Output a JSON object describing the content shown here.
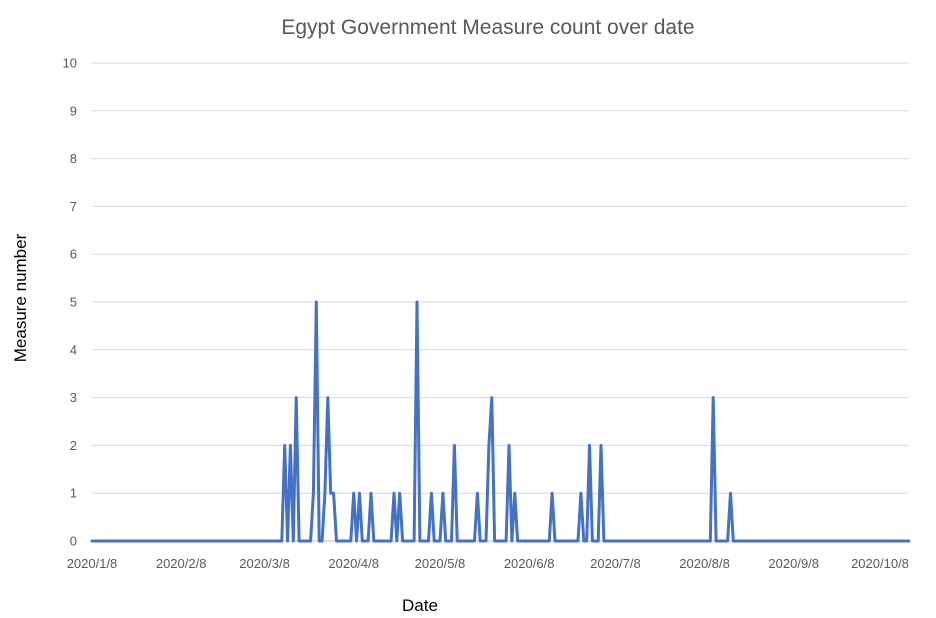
{
  "chart_data": {
    "type": "line",
    "title": "Egypt Government Measure count over date",
    "xlabel": "Date",
    "ylabel": "Measure number",
    "ylim": [
      0,
      10
    ],
    "yticks": [
      0,
      1,
      2,
      3,
      4,
      5,
      6,
      7,
      8,
      9,
      10
    ],
    "xlim": [
      "2020-01-08",
      "2020-10-18"
    ],
    "xticks": [
      {
        "date": "2020-01-08",
        "label": "2020/1/8"
      },
      {
        "date": "2020-02-08",
        "label": "2020/2/8"
      },
      {
        "date": "2020-03-08",
        "label": "2020/3/8"
      },
      {
        "date": "2020-04-08",
        "label": "2020/4/8"
      },
      {
        "date": "2020-05-08",
        "label": "2020/5/8"
      },
      {
        "date": "2020-06-08",
        "label": "2020/6/8"
      },
      {
        "date": "2020-07-08",
        "label": "2020/7/8"
      },
      {
        "date": "2020-08-08",
        "label": "2020/8/8"
      },
      {
        "date": "2020-09-08",
        "label": "2020/9/8"
      },
      {
        "date": "2020-10-08",
        "label": "2020/10/8"
      }
    ],
    "grid": true,
    "line_color": "#4472c4",
    "series": [
      {
        "points": [
          [
            "2020-01-08",
            0
          ],
          [
            "2020-03-14",
            0
          ],
          [
            "2020-03-15",
            2
          ],
          [
            "2020-03-16",
            0
          ],
          [
            "2020-03-17",
            2
          ],
          [
            "2020-03-18",
            0
          ],
          [
            "2020-03-19",
            3
          ],
          [
            "2020-03-20",
            0
          ],
          [
            "2020-03-24",
            0
          ],
          [
            "2020-03-25",
            1
          ],
          [
            "2020-03-26",
            5
          ],
          [
            "2020-03-27",
            0
          ],
          [
            "2020-03-28",
            0
          ],
          [
            "2020-03-29",
            1
          ],
          [
            "2020-03-30",
            3
          ],
          [
            "2020-03-31",
            1
          ],
          [
            "2020-04-01",
            1
          ],
          [
            "2020-04-02",
            0
          ],
          [
            "2020-04-07",
            0
          ],
          [
            "2020-04-08",
            1
          ],
          [
            "2020-04-09",
            0
          ],
          [
            "2020-04-10",
            1
          ],
          [
            "2020-04-11",
            0
          ],
          [
            "2020-04-13",
            0
          ],
          [
            "2020-04-14",
            1
          ],
          [
            "2020-04-15",
            0
          ],
          [
            "2020-04-21",
            0
          ],
          [
            "2020-04-22",
            1
          ],
          [
            "2020-04-23",
            0
          ],
          [
            "2020-04-24",
            1
          ],
          [
            "2020-04-25",
            0
          ],
          [
            "2020-04-29",
            0
          ],
          [
            "2020-04-30",
            5
          ],
          [
            "2020-05-01",
            0
          ],
          [
            "2020-05-04",
            0
          ],
          [
            "2020-05-05",
            1
          ],
          [
            "2020-05-06",
            0
          ],
          [
            "2020-05-08",
            0
          ],
          [
            "2020-05-09",
            1
          ],
          [
            "2020-05-10",
            0
          ],
          [
            "2020-05-12",
            0
          ],
          [
            "2020-05-13",
            2
          ],
          [
            "2020-05-14",
            0
          ],
          [
            "2020-05-20",
            0
          ],
          [
            "2020-05-21",
            1
          ],
          [
            "2020-05-22",
            0
          ],
          [
            "2020-05-24",
            0
          ],
          [
            "2020-05-25",
            2
          ],
          [
            "2020-05-26",
            3
          ],
          [
            "2020-05-27",
            0
          ],
          [
            "2020-05-31",
            0
          ],
          [
            "2020-06-01",
            2
          ],
          [
            "2020-06-02",
            0
          ],
          [
            "2020-06-03",
            1
          ],
          [
            "2020-06-04",
            0
          ],
          [
            "2020-06-15",
            0
          ],
          [
            "2020-06-16",
            1
          ],
          [
            "2020-06-17",
            0
          ],
          [
            "2020-06-25",
            0
          ],
          [
            "2020-06-26",
            1
          ],
          [
            "2020-06-27",
            0
          ],
          [
            "2020-06-28",
            0
          ],
          [
            "2020-06-29",
            2
          ],
          [
            "2020-06-30",
            0
          ],
          [
            "2020-07-02",
            0
          ],
          [
            "2020-07-03",
            2
          ],
          [
            "2020-07-04",
            0
          ],
          [
            "2020-08-10",
            0
          ],
          [
            "2020-08-11",
            3
          ],
          [
            "2020-08-12",
            0
          ],
          [
            "2020-08-16",
            0
          ],
          [
            "2020-08-17",
            1
          ],
          [
            "2020-08-18",
            0
          ],
          [
            "2020-10-18",
            0
          ]
        ]
      }
    ]
  }
}
